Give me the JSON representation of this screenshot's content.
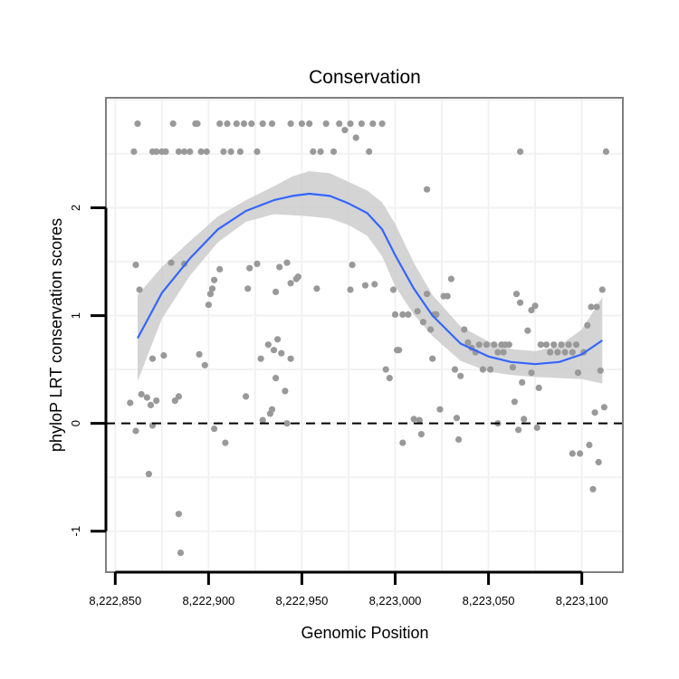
{
  "chart_data": {
    "type": "scatter",
    "title": "Conservation",
    "xlabel": "Genomic Position",
    "ylabel": "phyloP LRT conservation scores",
    "xlim": [
      8222845,
      8223122
    ],
    "ylim": [
      -1.38,
      3.02
    ],
    "x_ticks": [
      {
        "value": 8222850,
        "label": "8,222,850"
      },
      {
        "value": 8222900,
        "label": "8,222,900"
      },
      {
        "value": 8222950,
        "label": "8,222,950"
      },
      {
        "value": 8223000,
        "label": "8,223,000"
      },
      {
        "value": 8223050,
        "label": "8,223,050"
      },
      {
        "value": 8223100,
        "label": "8,223,100"
      }
    ],
    "y_ticks": [
      {
        "value": -1,
        "label": "-1"
      },
      {
        "value": 0,
        "label": "0"
      },
      {
        "value": 1,
        "label": "1"
      },
      {
        "value": 2,
        "label": "2"
      }
    ],
    "grid": true,
    "reference_line": {
      "y": 0,
      "style": "dashed"
    },
    "colors": {
      "points": "#999999",
      "smooth": "#3366ff",
      "band": "#cccccc",
      "border": "#7f7f7f",
      "grid": "#f2f2f2"
    },
    "points": [
      [
        8222860,
        2.52
      ],
      [
        8222862,
        2.78
      ],
      [
        8222870,
        2.52
      ],
      [
        8222872,
        2.52
      ],
      [
        8222875,
        2.52
      ],
      [
        8222877,
        2.52
      ],
      [
        8222881,
        2.78
      ],
      [
        8222884,
        2.52
      ],
      [
        8222887,
        2.52
      ],
      [
        8222890,
        2.52
      ],
      [
        8222893,
        2.78
      ],
      [
        8222894,
        2.78
      ],
      [
        8222896,
        2.52
      ],
      [
        8222899,
        2.52
      ],
      [
        8222906,
        2.78
      ],
      [
        8222908,
        2.52
      ],
      [
        8222910,
        2.78
      ],
      [
        8222912,
        2.52
      ],
      [
        8222915,
        2.78
      ],
      [
        8222917,
        2.52
      ],
      [
        8222919,
        2.78
      ],
      [
        8222923,
        2.78
      ],
      [
        8222926,
        2.52
      ],
      [
        8222929,
        2.78
      ],
      [
        8222934,
        2.78
      ],
      [
        8222944,
        2.78
      ],
      [
        8222950,
        2.78
      ],
      [
        8222954,
        2.78
      ],
      [
        8222956,
        2.52
      ],
      [
        8222960,
        2.52
      ],
      [
        8222963,
        2.78
      ],
      [
        8222967,
        2.52
      ],
      [
        8222970,
        2.78
      ],
      [
        8222973,
        2.72
      ],
      [
        8222976,
        2.78
      ],
      [
        8222979,
        2.65
      ],
      [
        8222982,
        2.78
      ],
      [
        8222986,
        2.52
      ],
      [
        8222988,
        2.78
      ],
      [
        8222993,
        2.78
      ],
      [
        8223017,
        2.17
      ],
      [
        8223067,
        2.52
      ],
      [
        8223113,
        2.52
      ],
      [
        8222861,
        1.47
      ],
      [
        8222863,
        1.24
      ],
      [
        8222880,
        1.49
      ],
      [
        8222887,
        1.48
      ],
      [
        8222903,
        1.33
      ],
      [
        8222906,
        1.43
      ],
      [
        8222921,
        1.25
      ],
      [
        8222922,
        1.44
      ],
      [
        8222926,
        1.48
      ],
      [
        8222938,
        1.45
      ],
      [
        8222942,
        1.49
      ],
      [
        8222948,
        1.36
      ],
      [
        8222958,
        1.25
      ],
      [
        8222976,
        1.24
      ],
      [
        8222977,
        1.47
      ],
      [
        8222984,
        1.28
      ],
      [
        8222989,
        1.29
      ],
      [
        8222999,
        1.24
      ],
      [
        8222902,
        1.25
      ],
      [
        8222901,
        1.2
      ],
      [
        8222900,
        1.1
      ],
      [
        8222936,
        1.22
      ],
      [
        8222944,
        1.3
      ],
      [
        8222947,
        1.34
      ],
      [
        8222858,
        0.19
      ],
      [
        8222861,
        -0.07
      ],
      [
        8222864,
        0.27
      ],
      [
        8222867,
        0.24
      ],
      [
        8222868,
        -0.47
      ],
      [
        8222869,
        0.17
      ],
      [
        8222870,
        -0.02
      ],
      [
        8222870,
        0.6
      ],
      [
        8222872,
        0.21
      ],
      [
        8222876,
        0.63
      ],
      [
        8222882,
        0.21
      ],
      [
        8222884,
        0.25
      ],
      [
        8222884,
        -0.84
      ],
      [
        8222885,
        -1.2
      ],
      [
        8222895,
        0.64
      ],
      [
        8222898,
        0.54
      ],
      [
        8222903,
        -0.05
      ],
      [
        8222909,
        -0.18
      ],
      [
        8222920,
        0.25
      ],
      [
        8222928,
        0.6
      ],
      [
        8222929,
        0.03
      ],
      [
        8222932,
        0.73
      ],
      [
        8222933,
        0.09
      ],
      [
        8222934,
        0.13
      ],
      [
        8222935,
        0.68
      ],
      [
        8222936,
        0.42
      ],
      [
        8222937,
        0.78
      ],
      [
        8222939,
        0.65
      ],
      [
        8222941,
        0.3
      ],
      [
        8222942,
        0.0
      ],
      [
        8222944,
        0.6
      ],
      [
        8222995,
        0.5
      ],
      [
        8222997,
        0.42
      ],
      [
        8223000,
        1.01
      ],
      [
        8223001,
        0.68
      ],
      [
        8223002,
        0.68
      ],
      [
        8223004,
        -0.18
      ],
      [
        8223004,
        1.01
      ],
      [
        8223007,
        1.01
      ],
      [
        8223010,
        0.04
      ],
      [
        8223012,
        1.04
      ],
      [
        8223013,
        0.03
      ],
      [
        8223014,
        -0.1
      ],
      [
        8223015,
        0.94
      ],
      [
        8223017,
        1.2
      ],
      [
        8223019,
        0.87
      ],
      [
        8223020,
        0.6
      ],
      [
        8223021,
        1.01
      ],
      [
        8223022,
        1.01
      ],
      [
        8223024,
        0.13
      ],
      [
        8223026,
        1.18
      ],
      [
        8223028,
        1.18
      ],
      [
        8223030,
        1.34
      ],
      [
        8223032,
        0.5
      ],
      [
        8223033,
        0.05
      ],
      [
        8223034,
        -0.15
      ],
      [
        8223035,
        0.44
      ],
      [
        8223037,
        0.87
      ],
      [
        8223039,
        0.75
      ],
      [
        8223041,
        0.7
      ],
      [
        8223043,
        0.66
      ],
      [
        8223045,
        0.73
      ],
      [
        8223047,
        0.5
      ],
      [
        8223049,
        0.73
      ],
      [
        8223051,
        0.5
      ],
      [
        8223053,
        0.73
      ],
      [
        8223055,
        0.66
      ],
      [
        8223055,
        0.0
      ],
      [
        8223057,
        0.73
      ],
      [
        8223058,
        0.66
      ],
      [
        8223059,
        0.73
      ],
      [
        8223061,
        0.73
      ],
      [
        8223063,
        0.52
      ],
      [
        8223064,
        0.2
      ],
      [
        8223065,
        1.2
      ],
      [
        8223066,
        -0.06
      ],
      [
        8223067,
        1.12
      ],
      [
        8223068,
        0.38
      ],
      [
        8223069,
        0.04
      ],
      [
        8223071,
        0.86
      ],
      [
        8223073,
        1.05
      ],
      [
        8223073,
        0.47
      ],
      [
        8223075,
        1.09
      ],
      [
        8223077,
        0.33
      ],
      [
        8223076,
        -0.04
      ],
      [
        8223078,
        0.73
      ],
      [
        8223081,
        0.73
      ],
      [
        8223083,
        0.66
      ],
      [
        8223085,
        0.73
      ],
      [
        8223087,
        0.66
      ],
      [
        8223089,
        0.73
      ],
      [
        8223091,
        0.66
      ],
      [
        8223093,
        0.73
      ],
      [
        8223095,
        0.66
      ],
      [
        8223095,
        -0.28
      ],
      [
        8223097,
        0.73
      ],
      [
        8223098,
        0.47
      ],
      [
        8223099,
        -0.28
      ],
      [
        8223101,
        0.66
      ],
      [
        8223103,
        0.91
      ],
      [
        8223104,
        -0.2
      ],
      [
        8223105,
        1.08
      ],
      [
        8223106,
        -0.61
      ],
      [
        8223107,
        0.1
      ],
      [
        8223108,
        1.08
      ],
      [
        8223109,
        -0.36
      ],
      [
        8223110,
        0.49
      ],
      [
        8223111,
        1.24
      ],
      [
        8223112,
        0.15
      ]
    ],
    "smooth": {
      "x": [
        8222862,
        8222875,
        8222890,
        8222905,
        8222920,
        8222935,
        8222945,
        8222954,
        8222965,
        8222975,
        8222985,
        8222993,
        8223000,
        8223010,
        8223020,
        8223035,
        8223050,
        8223062,
        8223075,
        8223088,
        8223100,
        8223111
      ],
      "y": [
        0.79,
        1.21,
        1.53,
        1.8,
        1.97,
        2.07,
        2.11,
        2.13,
        2.11,
        2.04,
        1.95,
        1.8,
        1.56,
        1.25,
        1.0,
        0.74,
        0.62,
        0.57,
        0.55,
        0.57,
        0.64,
        0.77
      ],
      "lower": [
        0.39,
        0.97,
        1.37,
        1.68,
        1.87,
        1.94,
        1.93,
        1.92,
        1.9,
        1.84,
        1.74,
        1.55,
        1.27,
        1.01,
        0.81,
        0.58,
        0.48,
        0.45,
        0.43,
        0.42,
        0.41,
        0.37
      ],
      "upper": [
        1.19,
        1.45,
        1.69,
        1.92,
        2.07,
        2.2,
        2.29,
        2.34,
        2.32,
        2.24,
        2.16,
        2.05,
        1.85,
        1.49,
        1.19,
        0.9,
        0.76,
        0.69,
        0.67,
        0.72,
        0.87,
        1.17
      ]
    }
  }
}
